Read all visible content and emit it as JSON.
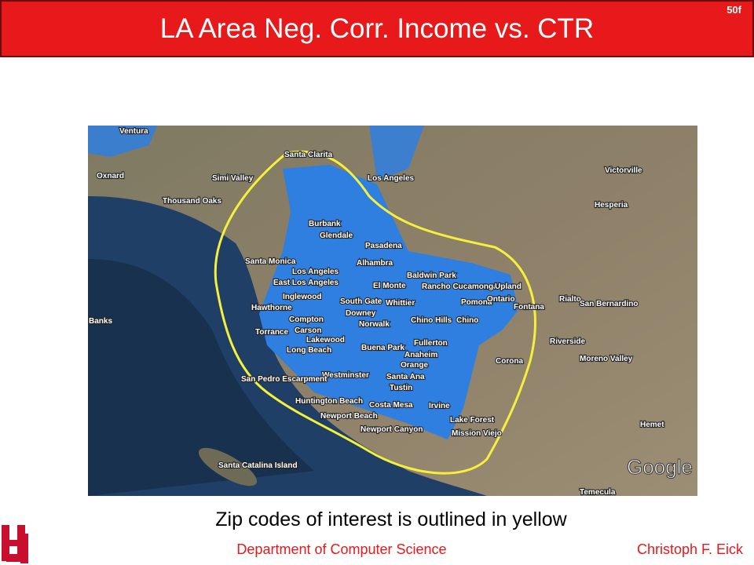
{
  "header": {
    "title": "LA Area Neg. Corr. Income vs. CTR",
    "slide_number": "50f"
  },
  "map": {
    "labels": [
      "Ventura",
      "Oxnard",
      "Simi Valley",
      "Thousand Oaks",
      "Santa Clarita",
      "Los Angeles",
      "Victorville",
      "Hesperia",
      "Burbank",
      "Glendale",
      "Pasadena",
      "Alhambra",
      "Santa Monica",
      "Los Angeles",
      "East Los Angeles",
      "Baldwin Park",
      "El Monte",
      "Rancho Cucamonga",
      "Upland",
      "Rialto",
      "San Bernardino",
      "Inglewood",
      "South Gate",
      "Whittier",
      "Pomona",
      "Ontario",
      "Fontana",
      "Hawthorne",
      "Downey",
      "Compton",
      "Norwalk",
      "Chino Hills",
      "Chino",
      "Torrance",
      "Carson",
      "Lakewood",
      "Riverside",
      "Long Beach",
      "Buena Park",
      "Fullerton",
      "Anaheim",
      "Moreno Valley",
      "Corona",
      "Orange",
      "Westminster",
      "Santa Ana",
      "Tustin",
      "San Pedro Escarpment",
      "Huntington Beach",
      "Costa Mesa",
      "Irvine",
      "Newport Beach",
      "Lake Forest",
      "Mission Viejo",
      "Newport Canyon",
      "Hemet",
      "Santa Catalina Island",
      "Temecula",
      "Banks"
    ],
    "logo": "Google"
  },
  "caption": "Zip codes of interest is outlined in yellow",
  "footer": {
    "department": "Department of Computer Science",
    "author": "Christoph F. Eick"
  }
}
